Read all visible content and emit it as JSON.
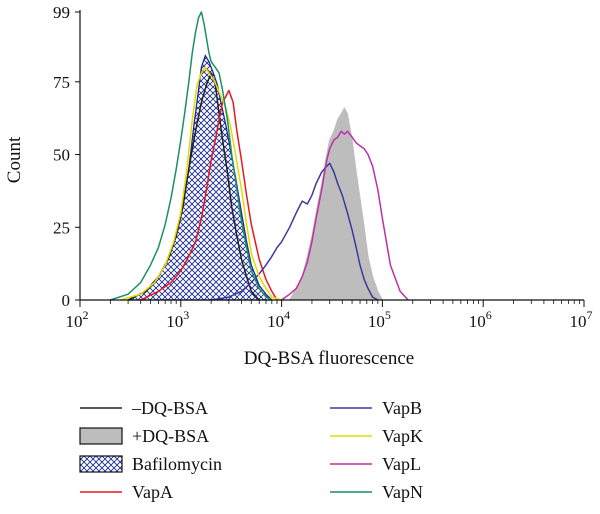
{
  "chart_data": {
    "type": "line",
    "xlabel": "DQ-BSA fluorescence",
    "ylabel": "Count",
    "x_scale": "log",
    "xlim": [
      100,
      10000000
    ],
    "ylim": [
      0,
      99
    ],
    "x_ticks": [
      {
        "value": 100,
        "base": "10",
        "exp": "2"
      },
      {
        "value": 1000,
        "base": "10",
        "exp": "3"
      },
      {
        "value": 10000,
        "base": "10",
        "exp": "4"
      },
      {
        "value": 100000,
        "base": "10",
        "exp": "5"
      },
      {
        "value": 1000000,
        "base": "10",
        "exp": "6"
      },
      {
        "value": 10000000,
        "base": "10",
        "exp": "7"
      }
    ],
    "y_ticks": [
      0,
      25,
      50,
      75,
      99
    ],
    "legend_position": "bottom",
    "series": [
      {
        "name": "+DQ-BSA",
        "style": "filled",
        "fill": "#bdbdbd",
        "color": "#bdbdbd",
        "x": [
          12000,
          14000,
          16000,
          18000,
          20000,
          22000,
          25000,
          28000,
          30000,
          33000,
          36000,
          39000,
          42000,
          45000,
          50000,
          55000,
          60000,
          66000,
          72000,
          80000,
          90000,
          100000
        ],
        "y": [
          0,
          4,
          8,
          15,
          22,
          30,
          40,
          50,
          55,
          58,
          62,
          64,
          66,
          64,
          55,
          44,
          35,
          25,
          15,
          8,
          3,
          0
        ]
      },
      {
        "name": "Bafilomycin",
        "style": "hatched",
        "fill": "#1a2a8c",
        "color": "#1a2a8c",
        "x": [
          300,
          450,
          600,
          750,
          900,
          1050,
          1200,
          1350,
          1500,
          1600,
          1750,
          1900,
          2100,
          2300,
          2500,
          2800,
          3100,
          3500,
          4000,
          4500,
          5000,
          6000,
          7000,
          8000
        ],
        "y": [
          0,
          3,
          8,
          14,
          22,
          32,
          45,
          60,
          72,
          80,
          84,
          82,
          78,
          74,
          68,
          60,
          52,
          42,
          30,
          20,
          12,
          5,
          2,
          0
        ]
      },
      {
        "name": "–DQ-BSA",
        "style": "line",
        "color": "#222222",
        "x": [
          300,
          450,
          600,
          750,
          900,
          1050,
          1200,
          1400,
          1600,
          1800,
          2000,
          2200,
          2400,
          2600,
          2900,
          3200,
          3600,
          4000,
          4500,
          5000,
          6000
        ],
        "y": [
          0,
          3,
          8,
          14,
          22,
          32,
          45,
          58,
          68,
          74,
          78,
          74,
          64,
          55,
          44,
          32,
          22,
          14,
          8,
          3,
          0
        ]
      },
      {
        "name": "VapA",
        "style": "line",
        "color": "#e8181f",
        "x": [
          400,
          600,
          800,
          1000,
          1200,
          1400,
          1600,
          1800,
          2000,
          2200,
          2400,
          2600,
          2800,
          3000,
          3300,
          3600,
          4000,
          4500,
          5000,
          6000,
          7000,
          8000,
          9000
        ],
        "y": [
          0,
          3,
          6,
          10,
          15,
          20,
          28,
          38,
          48,
          55,
          62,
          68,
          70,
          72,
          68,
          58,
          48,
          36,
          26,
          14,
          7,
          3,
          0
        ]
      },
      {
        "name": "VapB",
        "style": "line",
        "color": "#3a3a9c",
        "x": [
          2000,
          3000,
          4000,
          5000,
          6000,
          7000,
          8000,
          9000,
          10000,
          12000,
          14000,
          16000,
          18000,
          20000,
          22000,
          25000,
          28000,
          30000,
          33000,
          36000,
          40000,
          45000,
          50000,
          55000,
          60000,
          66000,
          72000,
          80000,
          90000
        ],
        "y": [
          0,
          1,
          3,
          6,
          9,
          12,
          15,
          18,
          20,
          25,
          30,
          34,
          33,
          36,
          40,
          44,
          46,
          47,
          44,
          40,
          36,
          30,
          24,
          18,
          12,
          7,
          4,
          1,
          0
        ]
      },
      {
        "name": "VapK",
        "style": "line",
        "color": "#e8d800",
        "x": [
          250,
          400,
          550,
          700,
          850,
          1000,
          1150,
          1300,
          1450,
          1600,
          1750,
          1900,
          2100,
          2300,
          2500,
          2800,
          3100,
          3500,
          4000,
          4500,
          5000,
          6000,
          7000,
          8000,
          10000
        ],
        "y": [
          0,
          2,
          6,
          12,
          20,
          30,
          45,
          62,
          74,
          78,
          80,
          78,
          76,
          73,
          70,
          66,
          60,
          50,
          38,
          26,
          16,
          8,
          4,
          1,
          0
        ]
      },
      {
        "name": "VapL",
        "style": "line",
        "color": "#c02fa6",
        "x": [
          10000,
          12000,
          14000,
          16000,
          18000,
          20000,
          22000,
          25000,
          28000,
          30000,
          33000,
          36000,
          39000,
          42000,
          45000,
          50000,
          55000,
          60000,
          66000,
          72000,
          80000,
          90000,
          100000,
          120000,
          150000,
          180000
        ],
        "y": [
          0,
          2,
          4,
          8,
          13,
          20,
          28,
          38,
          48,
          52,
          55,
          56,
          58,
          57,
          58,
          56,
          54,
          53,
          52,
          50,
          46,
          38,
          28,
          12,
          3,
          0
        ]
      },
      {
        "name": "VapN",
        "style": "line",
        "color": "#1a8f6a",
        "x": [
          200,
          300,
          400,
          500,
          600,
          700,
          800,
          900,
          1000,
          1100,
          1200,
          1300,
          1400,
          1500,
          1600,
          1700,
          1800,
          1900,
          2000,
          2200,
          2400,
          2600,
          2900,
          3200,
          3600,
          4000,
          4500,
          5000,
          6000,
          7000,
          8000
        ],
        "y": [
          0,
          2,
          6,
          12,
          18,
          26,
          35,
          45,
          55,
          65,
          75,
          85,
          92,
          97,
          99,
          95,
          90,
          85,
          82,
          80,
          78,
          72,
          62,
          50,
          38,
          27,
          18,
          10,
          4,
          1,
          0
        ]
      }
    ],
    "legend_order": [
      "–DQ-BSA",
      "+DQ-BSA",
      "Bafilomycin",
      "VapA",
      "VapB",
      "VapK",
      "VapL",
      "VapN"
    ]
  }
}
